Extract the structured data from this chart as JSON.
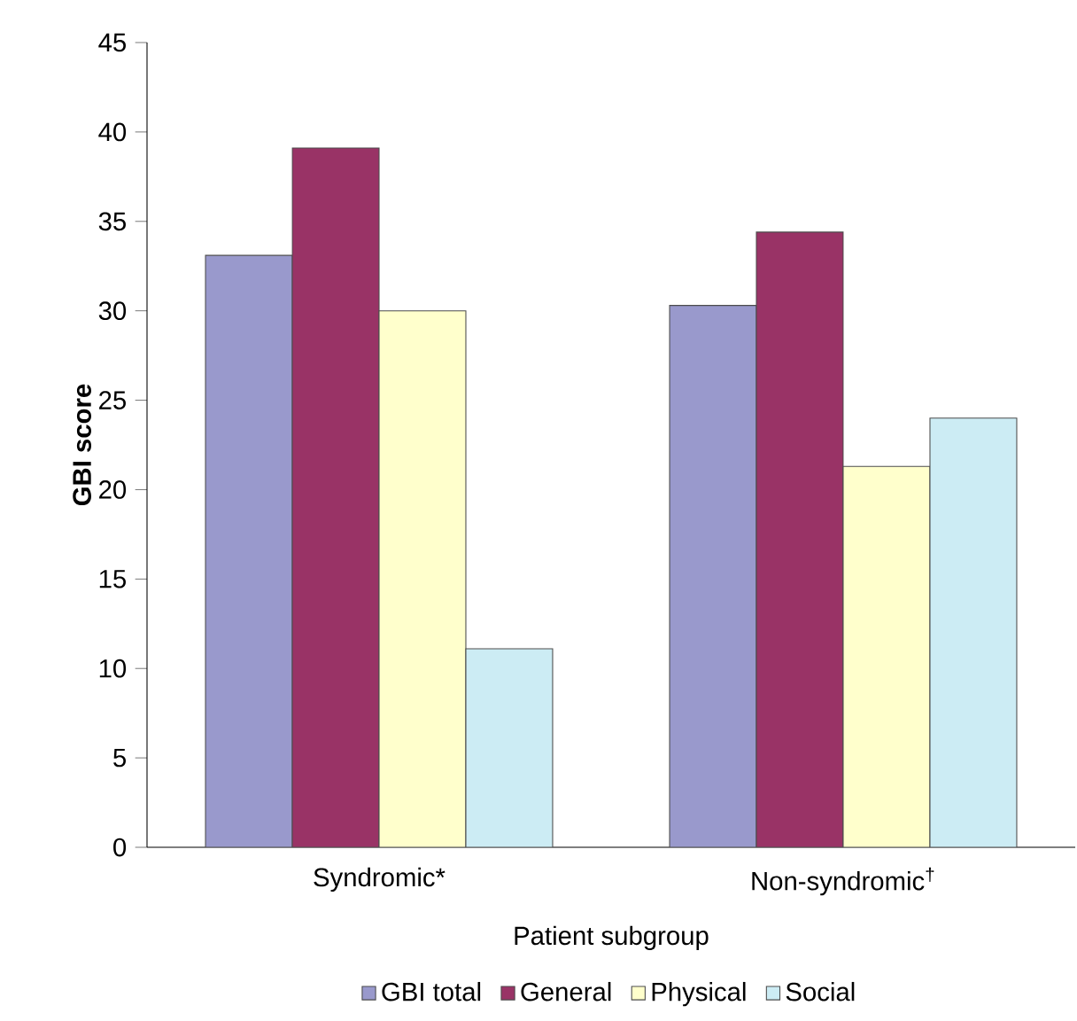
{
  "chart_data": {
    "type": "bar",
    "xlabel": "Patient subgroup",
    "ylabel": "**GBI score**",
    "categories": [
      "Syndromic*",
      "Non-syndromic$^{†}$"
    ],
    "series": [
      {
        "name": "GBI total",
        "color": "#9999cc",
        "values": [
          33.1,
          30.3
        ]
      },
      {
        "name": "General",
        "color": "#993366",
        "values": [
          39.1,
          34.4
        ]
      },
      {
        "name": "Physical",
        "color": "#ffffcc",
        "values": [
          30,
          21.3
        ]
      },
      {
        "name": "Social",
        "color": "#ccecf4",
        "values": [
          11.1,
          24
        ]
      }
    ],
    "ylim": [
      0,
      45
    ],
    "yticks": [
      0,
      5,
      10,
      15,
      20,
      25,
      30,
      35,
      40,
      45
    ],
    "legend": "bottom",
    "grid": false
  }
}
